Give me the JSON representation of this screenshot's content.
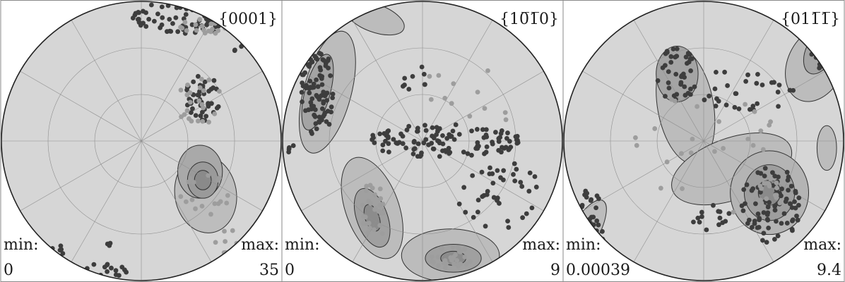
{
  "chart_data": [
    {
      "type": "scatter",
      "title": "{0001}",
      "min_label": "min:",
      "max_label": "max:",
      "min": "0",
      "max": "35",
      "contours": [
        {
          "cx": 0.46,
          "cy": -0.38,
          "rx": 0.22,
          "ry": 0.28,
          "rot": -10,
          "fill": "#bdbdbd"
        },
        {
          "cx": 0.42,
          "cy": -0.22,
          "rx": 0.16,
          "ry": 0.19,
          "rot": 0,
          "fill": "#a9a9a9"
        },
        {
          "cx": 0.44,
          "cy": -0.28,
          "rx": 0.11,
          "ry": 0.13,
          "rot": 0,
          "fill": "#9a9a9a"
        },
        {
          "cx": 0.44,
          "cy": -0.28,
          "rx": 0.06,
          "ry": 0.07,
          "rot": 0,
          "fill": "#8a8a8a"
        }
      ],
      "clusters": [
        {
          "cx": 0.35,
          "cy": 0.89,
          "rx": 0.42,
          "ry": 0.12,
          "n": 90,
          "tone": "dark"
        },
        {
          "cx": 0.46,
          "cy": 0.82,
          "rx": 0.18,
          "ry": 0.06,
          "n": 20,
          "tone": "light"
        },
        {
          "cx": 0.73,
          "cy": 0.67,
          "rx": 0.07,
          "ry": 0.06,
          "n": 6,
          "tone": "dark"
        },
        {
          "cx": 0.44,
          "cy": 0.3,
          "rx": 0.13,
          "ry": 0.17,
          "n": 45,
          "tone": "dark"
        },
        {
          "cx": 0.42,
          "cy": 0.28,
          "rx": 0.16,
          "ry": 0.2,
          "n": 22,
          "tone": "light"
        },
        {
          "cx": 0.46,
          "cy": -0.38,
          "rx": 0.18,
          "ry": 0.16,
          "n": 18,
          "tone": "light"
        },
        {
          "cx": 0.6,
          "cy": -0.72,
          "rx": 0.1,
          "ry": 0.1,
          "n": 7,
          "tone": "light"
        },
        {
          "cx": -0.28,
          "cy": -0.93,
          "rx": 0.2,
          "ry": 0.05,
          "n": 16,
          "tone": "dark"
        },
        {
          "cx": -0.58,
          "cy": -0.78,
          "rx": 0.06,
          "ry": 0.04,
          "n": 5,
          "tone": "dark"
        },
        {
          "cx": -0.25,
          "cy": -0.72,
          "rx": 0.04,
          "ry": 0.04,
          "n": 3,
          "tone": "dark"
        }
      ]
    },
    {
      "type": "scatter",
      "title": "{10̅1̅0}",
      "min_label": "min:",
      "max_label": "max:",
      "min": "0",
      "max": "9",
      "contours": [
        {
          "cx": -0.68,
          "cy": 0.35,
          "rx": 0.17,
          "ry": 0.45,
          "rot": 15,
          "fill": "#bcbcbc"
        },
        {
          "cx": -0.36,
          "cy": -0.48,
          "rx": 0.19,
          "ry": 0.38,
          "rot": -20,
          "fill": "#bcbcbc"
        },
        {
          "cx": 0.2,
          "cy": -0.82,
          "rx": 0.35,
          "ry": 0.19,
          "rot": 0,
          "fill": "#bcbcbc"
        },
        {
          "cx": -0.34,
          "cy": 0.88,
          "rx": 0.22,
          "ry": 0.1,
          "rot": 20,
          "fill": "#bcbcbc"
        },
        {
          "cx": -0.75,
          "cy": 0.35,
          "rx": 0.09,
          "ry": 0.28,
          "rot": 15,
          "fill": "#a4a4a4"
        },
        {
          "cx": -0.36,
          "cy": -0.55,
          "rx": 0.11,
          "ry": 0.22,
          "rot": -20,
          "fill": "#a0a0a0"
        },
        {
          "cx": 0.22,
          "cy": -0.84,
          "rx": 0.2,
          "ry": 0.1,
          "rot": 0,
          "fill": "#a0a0a0"
        },
        {
          "cx": -0.36,
          "cy": -0.55,
          "rx": 0.05,
          "ry": 0.1,
          "rot": -20,
          "fill": "#8c8c8c"
        },
        {
          "cx": 0.22,
          "cy": -0.84,
          "rx": 0.09,
          "ry": 0.05,
          "rot": 0,
          "fill": "#8c8c8c"
        }
      ],
      "clusters": [
        {
          "cx": -0.75,
          "cy": 0.35,
          "rx": 0.12,
          "ry": 0.32,
          "n": 90,
          "tone": "dark"
        },
        {
          "cx": -0.36,
          "cy": -0.52,
          "rx": 0.1,
          "ry": 0.22,
          "n": 28,
          "tone": "light"
        },
        {
          "cx": 0.2,
          "cy": -0.83,
          "rx": 0.16,
          "ry": 0.08,
          "n": 30,
          "tone": "light"
        },
        {
          "cx": 0.15,
          "cy": 0.0,
          "rx": 0.55,
          "ry": 0.12,
          "n": 120,
          "tone": "dark"
        },
        {
          "cx": 0.55,
          "cy": -0.38,
          "rx": 0.3,
          "ry": 0.25,
          "n": 40,
          "tone": "dark"
        },
        {
          "cx": 0.3,
          "cy": 0.3,
          "rx": 0.5,
          "ry": 0.25,
          "n": 14,
          "tone": "light"
        },
        {
          "cx": -0.05,
          "cy": 0.45,
          "rx": 0.12,
          "ry": 0.1,
          "n": 8,
          "tone": "dark"
        },
        {
          "cx": -0.95,
          "cy": -0.05,
          "rx": 0.03,
          "ry": 0.05,
          "n": 4,
          "tone": "dark"
        }
      ]
    },
    {
      "type": "scatter",
      "title": "{011̅1̅}",
      "min_label": "min:",
      "max_label": "max:",
      "min": "0.00039",
      "max": "9.4",
      "contours": [
        {
          "cx": -0.13,
          "cy": 0.25,
          "rx": 0.2,
          "ry": 0.42,
          "rot": -10,
          "fill": "#bcbcbc"
        },
        {
          "cx": 0.2,
          "cy": -0.2,
          "rx": 0.45,
          "ry": 0.22,
          "rot": -20,
          "fill": "#bcbcbc"
        },
        {
          "cx": 0.47,
          "cy": -0.37,
          "rx": 0.28,
          "ry": 0.3,
          "rot": 0,
          "fill": "#b4b4b4"
        },
        {
          "cx": 0.8,
          "cy": 0.55,
          "rx": 0.2,
          "ry": 0.28,
          "rot": 25,
          "fill": "#bcbcbc"
        },
        {
          "cx": 0.88,
          "cy": -0.05,
          "rx": 0.07,
          "ry": 0.16,
          "rot": 0,
          "fill": "#bcbcbc"
        },
        {
          "cx": -0.86,
          "cy": -0.67,
          "rx": 0.1,
          "ry": 0.28,
          "rot": 30,
          "fill": "#bcbcbc"
        },
        {
          "cx": -0.19,
          "cy": 0.48,
          "rx": 0.15,
          "ry": 0.2,
          "rot": 0,
          "fill": "#a4a4a4"
        },
        {
          "cx": 0.47,
          "cy": -0.37,
          "rx": 0.18,
          "ry": 0.2,
          "rot": 0,
          "fill": "#9e9e9e"
        },
        {
          "cx": 0.83,
          "cy": 0.64,
          "rx": 0.1,
          "ry": 0.17,
          "rot": 25,
          "fill": "#a4a4a4"
        },
        {
          "cx": 0.47,
          "cy": -0.37,
          "rx": 0.08,
          "ry": 0.09,
          "rot": 0,
          "fill": "#8a8a8a"
        }
      ],
      "clusters": [
        {
          "cx": -0.19,
          "cy": 0.48,
          "rx": 0.15,
          "ry": 0.2,
          "n": 40,
          "tone": "dark"
        },
        {
          "cx": 0.48,
          "cy": -0.45,
          "rx": 0.22,
          "ry": 0.28,
          "n": 80,
          "tone": "dark"
        },
        {
          "cx": 0.47,
          "cy": -0.37,
          "rx": 0.12,
          "ry": 0.12,
          "n": 20,
          "tone": "light"
        },
        {
          "cx": 0.84,
          "cy": 0.66,
          "rx": 0.1,
          "ry": 0.14,
          "n": 30,
          "tone": "dark"
        },
        {
          "cx": 0.3,
          "cy": 0.35,
          "rx": 0.35,
          "ry": 0.18,
          "n": 30,
          "tone": "dark"
        },
        {
          "cx": 0.0,
          "cy": 0.0,
          "rx": 0.6,
          "ry": 0.55,
          "n": 25,
          "tone": "light"
        },
        {
          "cx": -0.82,
          "cy": -0.6,
          "rx": 0.12,
          "ry": 0.25,
          "n": 45,
          "tone": "dark"
        },
        {
          "cx": 0.05,
          "cy": -0.55,
          "rx": 0.15,
          "ry": 0.1,
          "n": 14,
          "tone": "dark"
        }
      ]
    }
  ]
}
